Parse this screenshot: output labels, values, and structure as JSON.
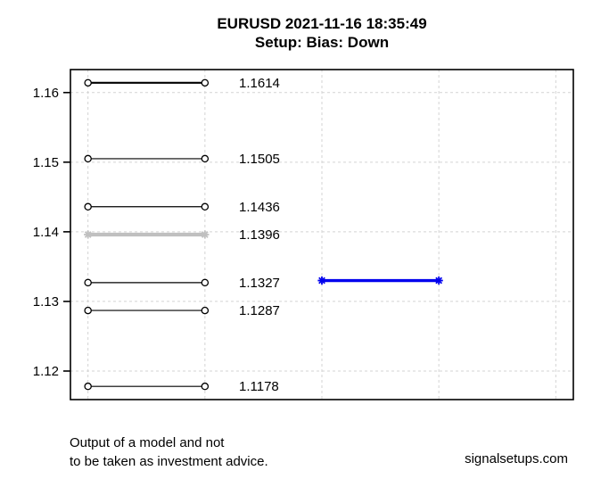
{
  "chart_data": {
    "type": "line",
    "title": "EURUSD 2021-11-16 18:35:49",
    "subtitle": "Setup: Bias: Down",
    "xlabel": "",
    "ylabel": "",
    "ylim": [
      1.1159,
      1.1633
    ],
    "xlim": [
      0.85,
      5.15
    ],
    "grid": true,
    "yticks": [
      1.16,
      1.15,
      1.14,
      1.13,
      1.12
    ],
    "ytick_labels": [
      "1.16",
      "1.15",
      "1.14",
      "1.13",
      "1.12"
    ],
    "x_gridlines": [
      1,
      2,
      3,
      4,
      5
    ],
    "levels": [
      {
        "value": 1.1614,
        "label": "1.1614",
        "x_start": 1,
        "x_end": 2,
        "color": "#000000",
        "line_width": 2.2,
        "marker": "open-circle"
      },
      {
        "value": 1.1505,
        "label": "1.1505",
        "x_start": 1,
        "x_end": 2,
        "color": "#000000",
        "line_width": 1.2,
        "marker": "open-circle"
      },
      {
        "value": 1.1436,
        "label": "1.1436",
        "x_start": 1,
        "x_end": 2,
        "color": "#000000",
        "line_width": 1.2,
        "marker": "open-circle"
      },
      {
        "value": 1.1396,
        "label": "1.1396",
        "x_start": 1,
        "x_end": 2,
        "color": "#c0c0c0",
        "line_width": 4.2,
        "marker": "asterisk"
      },
      {
        "value": 1.1327,
        "label": "1.1327",
        "x_start": 1,
        "x_end": 2,
        "color": "#000000",
        "line_width": 1.2,
        "marker": "open-circle"
      },
      {
        "value": 1.1287,
        "label": "1.1287",
        "x_start": 1,
        "x_end": 2,
        "color": "#000000",
        "line_width": 1.2,
        "marker": "open-circle"
      },
      {
        "value": 1.1178,
        "label": "1.1178",
        "x_start": 1,
        "x_end": 2,
        "color": "#000000",
        "line_width": 1.2,
        "marker": "open-circle"
      }
    ],
    "active_segment": {
      "value": 1.133,
      "x_start": 3,
      "x_end": 4,
      "color": "#0000ee",
      "line_width": 3.4,
      "marker": "asterisk"
    },
    "colors": {
      "grid": "#d3d3d3",
      "axis": "#000000"
    },
    "legend": "none"
  },
  "footer": {
    "disclaimer_line1": "Output of a model and not",
    "disclaimer_line2": "to be taken as investment advice.",
    "website": "signalsetups.com"
  }
}
